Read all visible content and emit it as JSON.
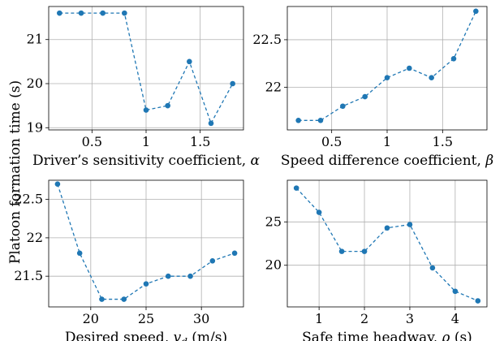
{
  "ylabel": "Platoon formation time (s)",
  "colors": {
    "series": "#1f77b4",
    "grid": "#b0b0b0",
    "axes": "#000000"
  },
  "chart_data": [
    {
      "type": "line",
      "xlabel": "Driver’s sensitivity coefficient, α",
      "xlim": [
        0.1,
        1.9
      ],
      "ylim": [
        18.95,
        21.75
      ],
      "xticks": [
        0.5,
        1,
        1.5
      ],
      "xtick_labels": [
        "0.5",
        "1",
        "1.5"
      ],
      "yticks": [
        19,
        20,
        21
      ],
      "ytick_labels": [
        "19",
        "20",
        "21"
      ],
      "x": [
        0.2,
        0.4,
        0.6,
        0.8,
        1.0,
        1.2,
        1.4,
        1.6,
        1.8
      ],
      "y": [
        21.6,
        21.6,
        21.6,
        21.6,
        19.4,
        19.5,
        20.5,
        19.1,
        20.0
      ],
      "grid": true
    },
    {
      "type": "line",
      "xlabel": "Speed difference coefficient, β",
      "xlim": [
        0.1,
        1.9
      ],
      "ylim": [
        21.55,
        22.85
      ],
      "xticks": [
        0.5,
        1,
        1.5
      ],
      "xtick_labels": [
        "0.5",
        "1",
        "1.5"
      ],
      "yticks": [
        22,
        22.5
      ],
      "ytick_labels": [
        "22",
        "22.5"
      ],
      "x": [
        0.2,
        0.4,
        0.6,
        0.8,
        1.0,
        1.2,
        1.4,
        1.6,
        1.8
      ],
      "y": [
        21.65,
        21.65,
        21.8,
        21.9,
        22.1,
        22.2,
        22.1,
        22.3,
        22.8
      ],
      "grid": true
    },
    {
      "type": "line",
      "xlabel": "Desired speed, v_d (m/s)",
      "xlim": [
        16.2,
        33.8
      ],
      "ylim": [
        21.1,
        22.75
      ],
      "xticks": [
        20,
        25,
        30
      ],
      "xtick_labels": [
        "20",
        "25",
        "30"
      ],
      "yticks": [
        21.5,
        22,
        22.5
      ],
      "ytick_labels": [
        "21.5",
        "22",
        "22.5"
      ],
      "x": [
        17,
        19,
        21,
        23,
        25,
        27,
        29,
        31,
        33
      ],
      "y": [
        22.7,
        21.8,
        21.2,
        21.2,
        21.4,
        21.5,
        21.5,
        21.7,
        21.8
      ],
      "grid": true
    },
    {
      "type": "line",
      "xlabel": "Safe time headway, ρ (s)",
      "xlim": [
        0.3,
        4.7
      ],
      "ylim": [
        15.2,
        29.8
      ],
      "xticks": [
        1,
        2,
        3,
        4
      ],
      "xtick_labels": [
        "1",
        "2",
        "3",
        "4"
      ],
      "yticks": [
        20,
        25
      ],
      "ytick_labels": [
        "20",
        "25"
      ],
      "x": [
        0.5,
        1.0,
        1.5,
        2.0,
        2.5,
        3.0,
        3.5,
        4.0,
        4.5
      ],
      "y": [
        28.9,
        26.1,
        21.6,
        21.6,
        24.3,
        24.7,
        19.7,
        17.0,
        15.9
      ],
      "grid": true
    }
  ]
}
